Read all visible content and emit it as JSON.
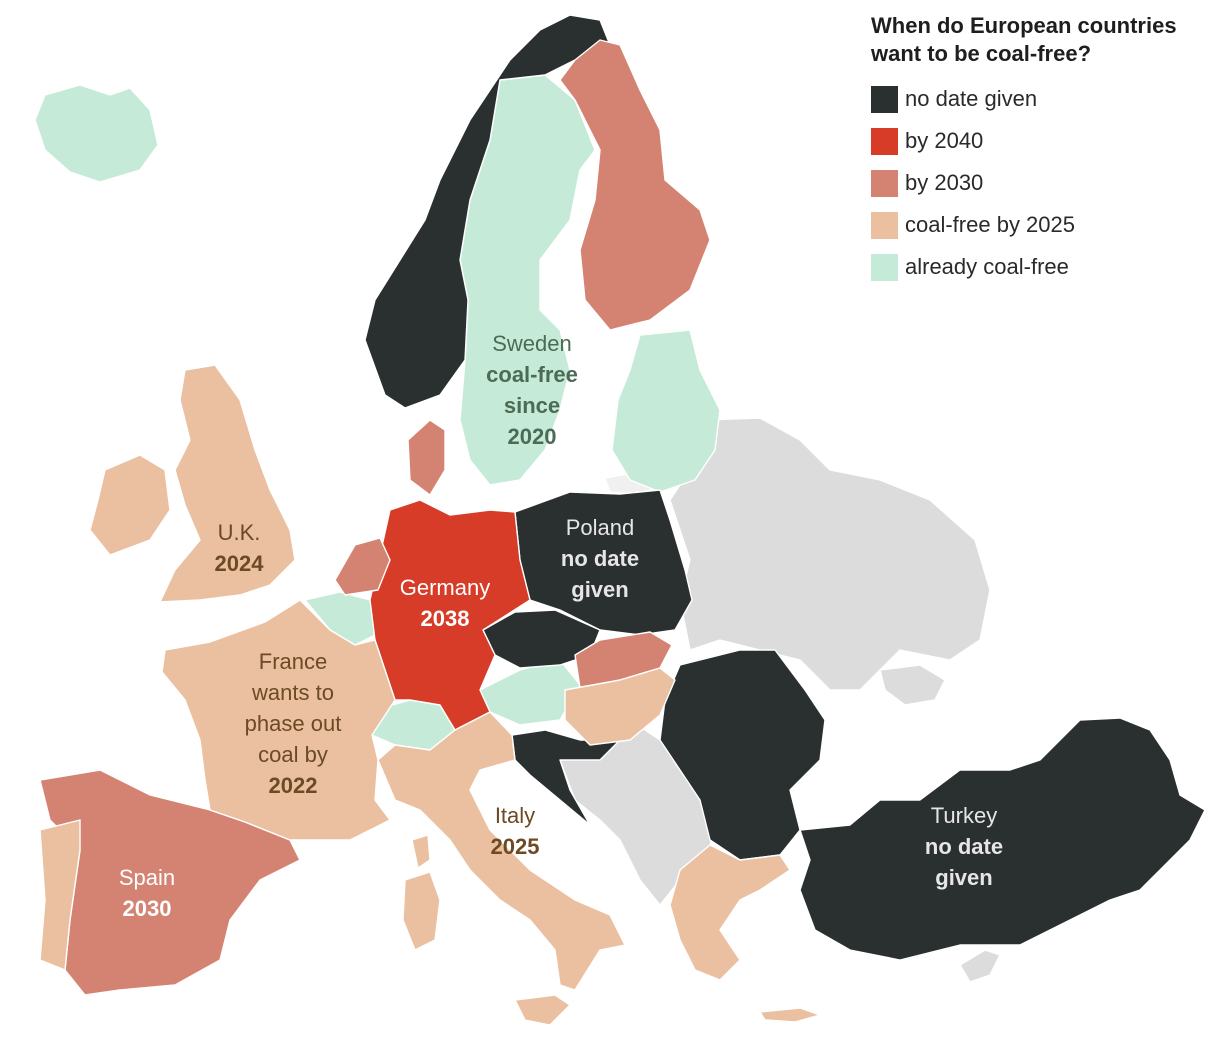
{
  "legend": {
    "title_line1": "When do European countries",
    "title_line2": "want to be coal-free?",
    "items": [
      {
        "label": "no date given",
        "color": "#2a2f30"
      },
      {
        "label": "by 2040",
        "color": "#d63c27"
      },
      {
        "label": "by 2030",
        "color": "#d48372"
      },
      {
        "label": "coal-free by 2025",
        "color": "#eac0a0"
      },
      {
        "label": "already coal-free",
        "color": "#c5ebd8"
      }
    ]
  },
  "colors": {
    "no_data": "#dcdcdc",
    "label_dark_text": "#6b4a24",
    "label_light_text": "#e6e6e6",
    "label_green_text": "#4c6b55"
  },
  "labels": {
    "sweden": {
      "name": "Sweden",
      "lines": [
        "coal-free",
        "since",
        "2020"
      ]
    },
    "poland": {
      "name": "Poland",
      "lines": [
        "no date",
        "given"
      ]
    },
    "uk": {
      "name": "U.K.",
      "lines": [
        "2024"
      ]
    },
    "germany": {
      "name": "Germany",
      "lines": [
        "2038"
      ]
    },
    "france": {
      "name_lines": [
        "France",
        "wants to",
        "phase out",
        "coal by"
      ],
      "lines": [
        "2022"
      ]
    },
    "italy": {
      "name": "Italy",
      "lines": [
        "2025"
      ]
    },
    "spain": {
      "name": "Spain",
      "lines": [
        "2030"
      ]
    },
    "turkey": {
      "name": "Turkey",
      "lines": [
        "no date",
        "given"
      ]
    }
  }
}
